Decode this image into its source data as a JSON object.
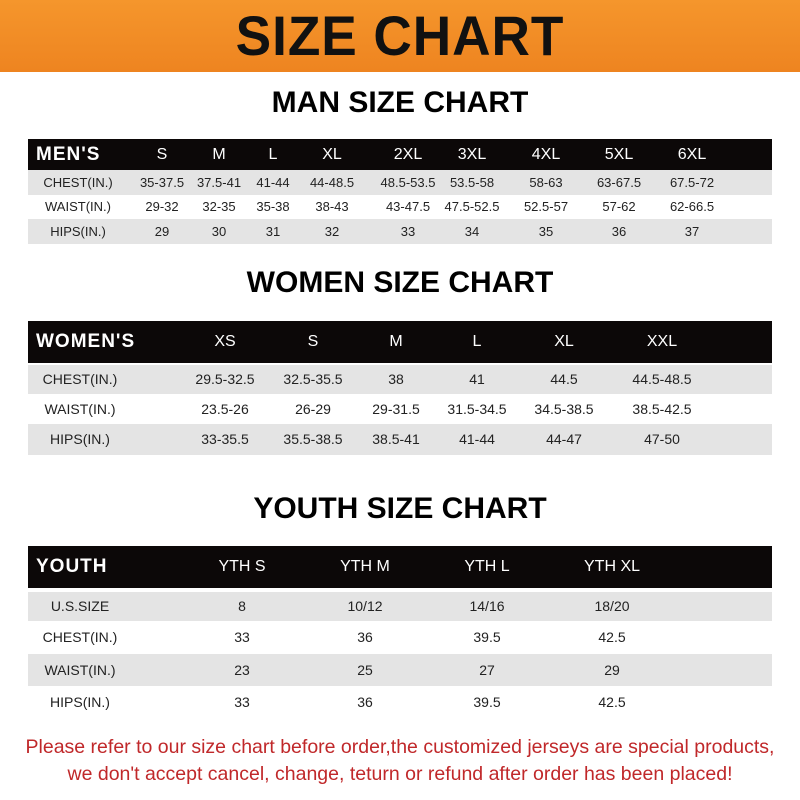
{
  "title": "SIZE CHART",
  "men": {
    "title": "MAN SIZE CHART",
    "header": [
      "MEN'S",
      "S",
      "M",
      "L",
      "XL",
      "2XL",
      "3XL",
      "4XL",
      "5XL",
      "6XL"
    ],
    "rows": [
      [
        "CHEST(IN.)",
        "35-37.5",
        "37.5-41",
        "41-44",
        "44-48.5",
        "48.5-53.5",
        "53.5-58",
        "58-63",
        "63-67.5",
        "67.5-72"
      ],
      [
        "WAIST(IN.)",
        "29-32",
        "32-35",
        "35-38",
        "38-43",
        "43-47.5",
        "47.5-52.5",
        "52.5-57",
        "57-62",
        "62-66.5"
      ],
      [
        "HIPS(IN.)",
        "29",
        "30",
        "31",
        "32",
        "33",
        "34",
        "35",
        "36",
        "37"
      ]
    ]
  },
  "women": {
    "title": "WOMEN SIZE CHART",
    "header": [
      "WOMEN'S",
      "XS",
      "S",
      "M",
      "L",
      "XL",
      "XXL"
    ],
    "rows": [
      [
        "CHEST(IN.)",
        "29.5-32.5",
        "32.5-35.5",
        "38",
        "41",
        "44.5",
        "44.5-48.5"
      ],
      [
        "WAIST(IN.)",
        "23.5-26",
        "26-29",
        "29-31.5",
        "31.5-34.5",
        "34.5-38.5",
        "38.5-42.5"
      ],
      [
        "HIPS(IN.)",
        "33-35.5",
        "35.5-38.5",
        "38.5-41",
        "41-44",
        "44-47",
        "47-50"
      ]
    ]
  },
  "youth": {
    "title": "YOUTH SIZE CHART",
    "header": [
      "YOUTH",
      "YTH S",
      "YTH M",
      "YTH L",
      "YTH XL"
    ],
    "rows": [
      [
        "U.S.SIZE",
        "8",
        "10/12",
        "14/16",
        "18/20"
      ],
      [
        "CHEST(IN.)",
        "33",
        "36",
        "39.5",
        "42.5"
      ],
      [
        "WAIST(IN.)",
        "23",
        "25",
        "27",
        "29"
      ],
      [
        "HIPS(IN.)",
        "33",
        "36",
        "39.5",
        "42.5"
      ]
    ]
  },
  "note": {
    "line1": "Please refer to our size chart before order,the customized jerseys are special products,",
    "line2": "we don't accept cancel, change, teturn or refund after order has been placed!"
  },
  "colors": {
    "banner": "#f08a24",
    "header_row": "#0c0808",
    "alt_row": "#e4e4e4",
    "note": "#c0282a"
  }
}
